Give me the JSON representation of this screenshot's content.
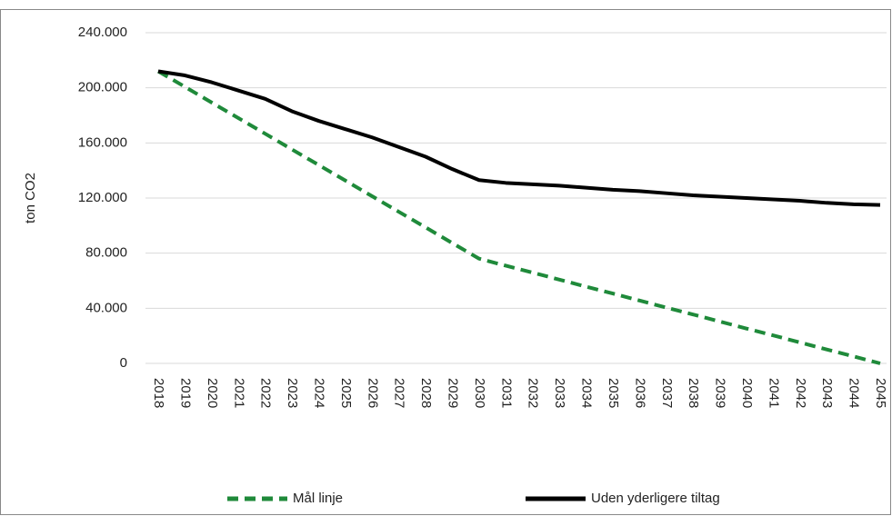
{
  "chart_data": {
    "type": "line",
    "y_label": "ton CO2",
    "x": [
      "2018",
      "2019",
      "2020",
      "2021",
      "2022",
      "2023",
      "2024",
      "2025",
      "2026",
      "2027",
      "2028",
      "2029",
      "2030",
      "2031",
      "2032",
      "2033",
      "2034",
      "2035",
      "2036",
      "2037",
      "2038",
      "2039",
      "2040",
      "2041",
      "2042",
      "2043",
      "2044",
      "2045"
    ],
    "series": [
      {
        "name": "Mål linje",
        "color": "#1f8a3a",
        "dashed": true,
        "values": [
          212000,
          200700,
          189300,
          178000,
          166700,
          155300,
          144000,
          132700,
          121300,
          110000,
          98700,
          87300,
          76000,
          70900,
          65900,
          60800,
          55700,
          50700,
          45600,
          40500,
          35500,
          30400,
          25300,
          20300,
          15200,
          10100,
          5100,
          0
        ]
      },
      {
        "name": "Uden yderligere tiltag",
        "color": "#000000",
        "dashed": false,
        "values": [
          212000,
          209000,
          204000,
          198000,
          192000,
          183000,
          176000,
          170000,
          164000,
          157000,
          150000,
          141000,
          133000,
          131000,
          130000,
          129000,
          127500,
          126000,
          125000,
          123500,
          122000,
          121000,
          120000,
          119000,
          118000,
          116500,
          115500,
          115000
        ]
      }
    ],
    "ylim": [
      0,
      240000
    ],
    "yticks": [
      0,
      {
        "value": 40000,
        "label": "40.000"
      },
      {
        "value": 80000,
        "label": "80.000"
      },
      {
        "value": 120000,
        "label": "120.000"
      },
      {
        "value": 160000,
        "label": "160.000"
      },
      {
        "value": 200000,
        "label": "200.000"
      },
      {
        "value": 240000,
        "label": "240.000"
      }
    ],
    "grid": true,
    "legend": "bottom"
  }
}
